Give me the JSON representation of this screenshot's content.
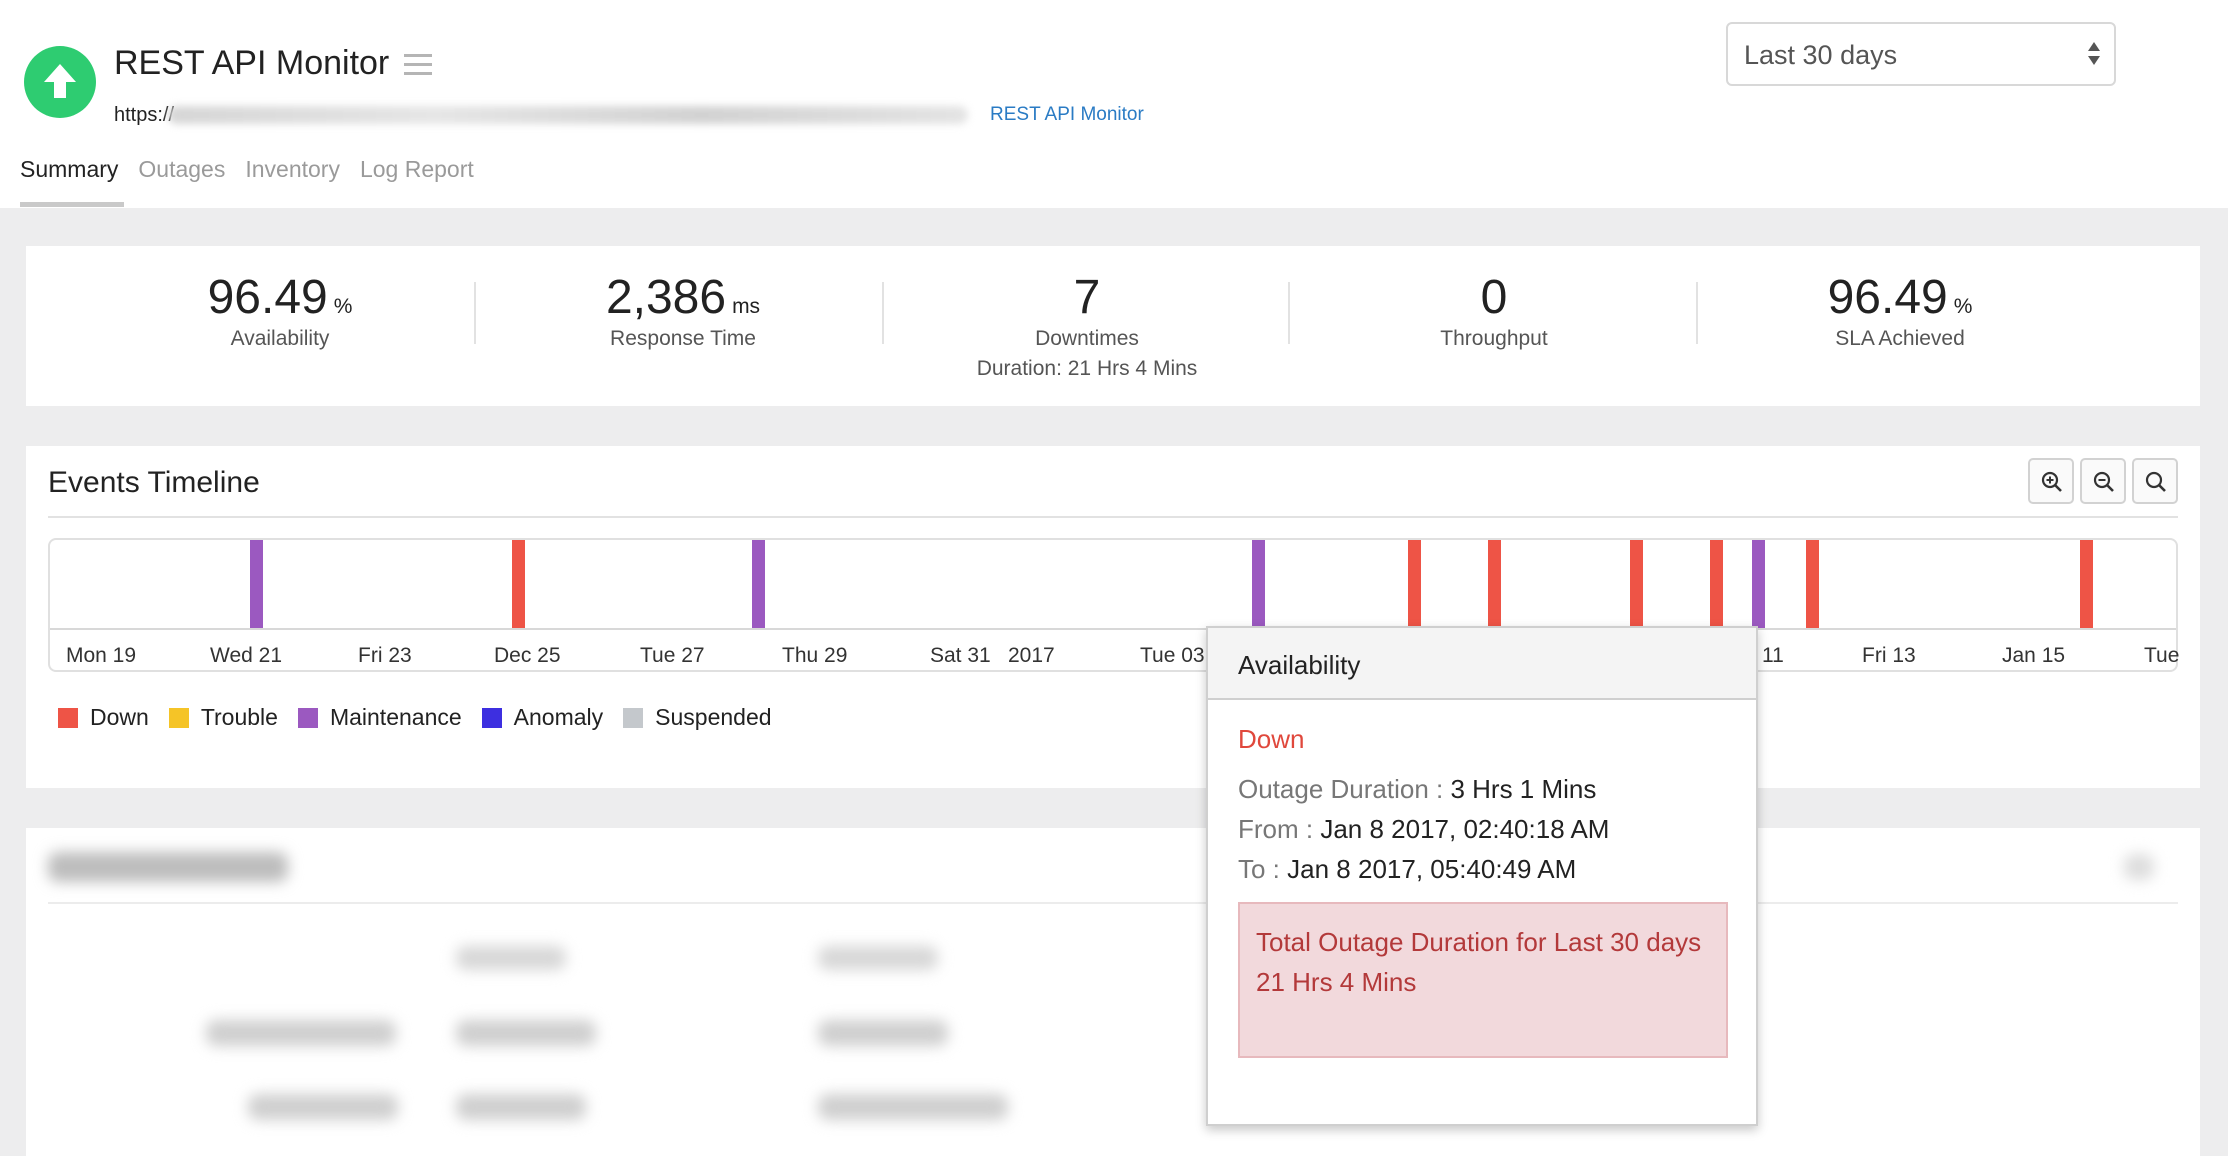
{
  "header": {
    "title": "REST API Monitor",
    "url_prefix": "https://",
    "monitor_type": "REST API Monitor",
    "status_color": "#2ecc71",
    "period": "Last 30 days",
    "tabs": [
      "Summary",
      "Outages",
      "Inventory",
      "Log Report"
    ],
    "active_tab": "Summary"
  },
  "stats": [
    {
      "value": "96.49",
      "unit": "%",
      "label": "Availability",
      "sub": ""
    },
    {
      "value": "2,386",
      "unit": "ms",
      "label": "Response Time",
      "sub": ""
    },
    {
      "value": "7",
      "unit": "",
      "label": "Downtimes",
      "sub": "Duration: 21 Hrs 4 Mins"
    },
    {
      "value": "0",
      "unit": "",
      "label": "Throughput",
      "sub": ""
    },
    {
      "value": "96.49",
      "unit": "%",
      "label": "SLA Achieved",
      "sub": ""
    }
  ],
  "events": {
    "title": "Events Timeline",
    "zoom_icons": [
      "zoom-in-icon",
      "zoom-out-icon",
      "zoom-reset-icon"
    ],
    "ticks": [
      "Mon 19",
      "Wed 21",
      "Fri 23",
      "Dec 25",
      "Tue 27",
      "Thu 29",
      "Sat 31",
      "2017",
      "Tue 03",
      "11",
      "Fri 13",
      "Jan 15",
      "Tue"
    ],
    "bars": [
      {
        "type": "Maintenance"
      },
      {
        "type": "Down"
      },
      {
        "type": "Maintenance"
      },
      {
        "type": "Maintenance"
      },
      {
        "type": "Down"
      },
      {
        "type": "Down"
      },
      {
        "type": "Down"
      },
      {
        "type": "Down"
      },
      {
        "type": "Maintenance"
      },
      {
        "type": "Down"
      },
      {
        "type": "Down"
      }
    ],
    "legend": [
      {
        "label": "Down",
        "color": "#ee5446"
      },
      {
        "label": "Trouble",
        "color": "#f5c427"
      },
      {
        "label": "Maintenance",
        "color": "#9b59c0"
      },
      {
        "label": "Anomaly",
        "color": "#3d2fe0"
      },
      {
        "label": "Suspended",
        "color": "#c4c8cc"
      }
    ]
  },
  "tooltip": {
    "title": "Availability",
    "status": "Down",
    "duration_label": "Outage Duration :",
    "duration_value": "3 Hrs 1 Mins",
    "from_label": "From :",
    "from_value": "Jan 8 2017, 02:40:18 AM",
    "to_label": "To :",
    "to_value": "Jan 8 2017, 05:40:49 AM",
    "total_text": "Total Outage Duration for Last 30 days",
    "total_value": "21 Hrs 4 Mins"
  }
}
